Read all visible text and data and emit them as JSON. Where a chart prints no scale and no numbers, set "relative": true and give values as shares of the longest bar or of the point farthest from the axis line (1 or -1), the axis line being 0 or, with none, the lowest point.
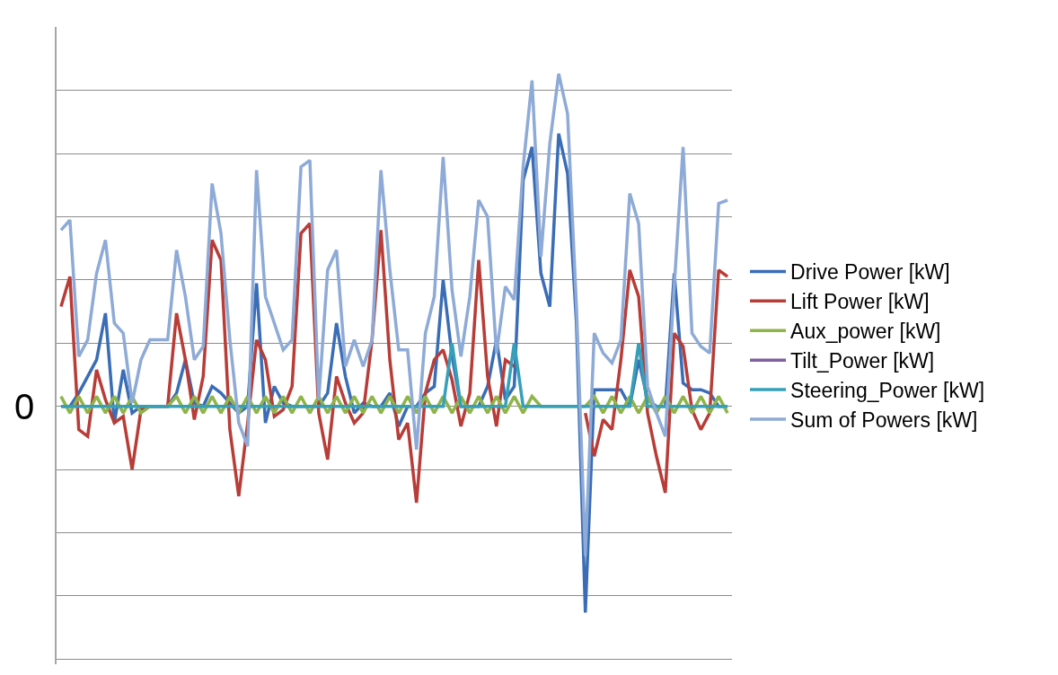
{
  "chart_data": {
    "type": "line",
    "relative": true,
    "grid": "y",
    "legend": "right",
    "marker": "none",
    "line_style": "solid",
    "annotations": [
      "0"
    ],
    "categories": [
      null,
      null,
      null,
      null,
      null,
      null,
      null,
      null,
      null,
      null,
      null,
      null,
      null,
      null,
      null,
      null,
      null,
      null,
      null,
      null,
      null,
      null,
      null,
      null,
      null,
      null,
      null,
      null,
      null,
      null,
      null,
      null,
      null,
      null,
      null,
      null,
      null,
      null,
      null,
      null,
      null,
      null,
      null,
      null,
      null,
      null,
      null,
      null,
      null,
      null,
      null,
      null,
      null,
      null,
      null,
      null,
      null,
      null,
      null,
      null,
      null,
      null,
      null,
      null,
      null,
      null,
      null,
      null,
      null,
      null,
      null,
      null,
      null,
      null,
      null,
      null
    ],
    "series": [
      {
        "name": "Drive Power [kW]",
        "color": "#3a6db5",
        "values": [
          0,
          0,
          0.04,
          0.09,
          0.14,
          0.28,
          -0.05,
          0.11,
          -0.02,
          0,
          0,
          0,
          0,
          0.04,
          0.14,
          0.01,
          0,
          0.06,
          0.04,
          0.01,
          -0.02,
          0,
          0.37,
          -0.05,
          0.06,
          0.01,
          0,
          0,
          0,
          0,
          0.04,
          0.25,
          0.09,
          -0.02,
          0.01,
          0,
          0,
          0.04,
          -0.06,
          0,
          0,
          0.04,
          0.06,
          0.38,
          0.15,
          0,
          0,
          0,
          0.06,
          0.2,
          0.02,
          0.06,
          0.68,
          0.78,
          0.4,
          0.3,
          0.82,
          0.7,
          0.25,
          -0.62,
          0.05,
          0.05,
          0.05,
          0.05,
          0,
          0.14,
          0.02,
          0,
          0,
          0.4,
          0.07,
          0.05,
          0.05,
          0.04,
          0,
          0
        ]
      },
      {
        "name": "Lift Power [kW]",
        "color": "#b83c37",
        "values": [
          0.3,
          0.39,
          -0.07,
          -0.09,
          0.11,
          0.02,
          -0.05,
          -0.03,
          -0.19,
          -0.01,
          0,
          0,
          0,
          0.28,
          0.14,
          -0.04,
          0.09,
          0.5,
          0.44,
          -0.07,
          -0.27,
          -0.05,
          0.2,
          0.14,
          -0.03,
          -0.01,
          0.06,
          0.52,
          0.55,
          -0.02,
          -0.16,
          0.09,
          0.01,
          -0.05,
          -0.02,
          0.2,
          0.53,
          0.14,
          -0.1,
          -0.05,
          -0.29,
          0.04,
          0.14,
          0.17,
          0.08,
          -0.06,
          0.04,
          0.44,
          0.09,
          -0.06,
          0.14,
          0.12,
          null,
          null,
          null,
          null,
          null,
          null,
          null,
          -0.02,
          -0.15,
          -0.04,
          -0.07,
          0.14,
          0.41,
          0.33,
          -0.02,
          -0.15,
          -0.26,
          0.22,
          0.18,
          -0.01,
          -0.07,
          -0.02,
          0.41,
          0.39
        ]
      },
      {
        "name": "Aux_power [kW]",
        "color": "#8fb44a",
        "values": [
          0.03,
          -0.02,
          0.03,
          -0.02,
          0.03,
          -0.02,
          0.03,
          -0.02,
          0.03,
          -0.02,
          0,
          0,
          0,
          0.03,
          -0.02,
          0.03,
          -0.02,
          0.03,
          -0.02,
          0.03,
          -0.02,
          0.03,
          -0.02,
          0.03,
          -0.02,
          0.03,
          -0.02,
          0.03,
          -0.02,
          0.03,
          -0.02,
          0.03,
          -0.02,
          0.03,
          -0.02,
          0.03,
          -0.02,
          0.03,
          -0.02,
          0.03,
          -0.02,
          0.03,
          -0.02,
          0.03,
          -0.02,
          0.03,
          -0.02,
          0.03,
          -0.02,
          0.03,
          -0.02,
          0.03,
          -0.02,
          0.03,
          0,
          0,
          0,
          0,
          0,
          0,
          0.03,
          -0.02,
          0.03,
          -0.02,
          0.03,
          -0.02,
          0.03,
          -0.02,
          0.03,
          -0.02,
          0.03,
          -0.02,
          0.03,
          -0.02,
          0.03,
          -0.02
        ]
      },
      {
        "name": "Tilt_Power [kW]",
        "color": "#7f5fa0",
        "values": [
          null,
          null,
          null,
          null,
          null,
          null,
          null,
          null,
          null,
          null,
          null,
          null,
          null,
          null,
          null,
          null,
          null,
          null,
          null,
          null,
          null,
          null,
          null,
          null,
          null,
          null,
          null,
          null,
          null,
          null,
          null,
          null,
          null,
          null,
          null,
          null,
          null,
          null,
          null,
          null,
          null,
          null,
          null,
          null,
          null,
          null,
          null,
          null,
          null,
          null,
          null,
          null,
          null,
          null,
          null,
          null,
          null,
          null,
          null,
          null,
          null,
          null,
          null,
          null,
          null,
          null,
          null,
          null,
          null,
          null,
          null,
          null,
          null,
          null,
          null,
          null
        ]
      },
      {
        "name": "Steering_Power [kW]",
        "color": "#35a0b8",
        "values": [
          0,
          0,
          0,
          0,
          0,
          0,
          0,
          0,
          0,
          0,
          0,
          0,
          0,
          0,
          0,
          0,
          0,
          0,
          0,
          0,
          0,
          0,
          0,
          0,
          0,
          0,
          0,
          0,
          0,
          0,
          0,
          0,
          0,
          0,
          0,
          0,
          0,
          0,
          0,
          0,
          0,
          0,
          0,
          0,
          0.19,
          0,
          0,
          0,
          0,
          0,
          0,
          0.19,
          0,
          0,
          0,
          0,
          0,
          0,
          0,
          0,
          0,
          0,
          0,
          0,
          0,
          0.19,
          0,
          0,
          0,
          0,
          0,
          0,
          0,
          0,
          0,
          0
        ]
      },
      {
        "name": "Sum of Powers [kW]",
        "color": "#8eaad6",
        "values": [
          0.53,
          0.56,
          0.15,
          0.2,
          0.4,
          0.5,
          0.25,
          0.22,
          0.01,
          0.14,
          0.2,
          0.2,
          0.2,
          0.47,
          0.33,
          0.14,
          0.18,
          0.67,
          0.52,
          0.2,
          -0.05,
          -0.12,
          0.71,
          0.33,
          0.25,
          0.17,
          0.2,
          0.72,
          0.74,
          0.02,
          0.41,
          0.47,
          0.12,
          0.2,
          0.12,
          0.2,
          0.71,
          0.41,
          0.17,
          0.17,
          -0.13,
          0.22,
          0.33,
          0.75,
          0.35,
          0.15,
          0.33,
          0.62,
          0.57,
          0.16,
          0.36,
          0.32,
          0.72,
          0.98,
          0.45,
          0.79,
          1,
          0.88,
          0.3,
          -0.45,
          0.22,
          0.16,
          0.13,
          0.2,
          0.64,
          0.55,
          0.06,
          -0.02,
          -0.09,
          0.36,
          0.78,
          0.22,
          0.18,
          0.16,
          0.61,
          0.62
        ]
      }
    ]
  }
}
